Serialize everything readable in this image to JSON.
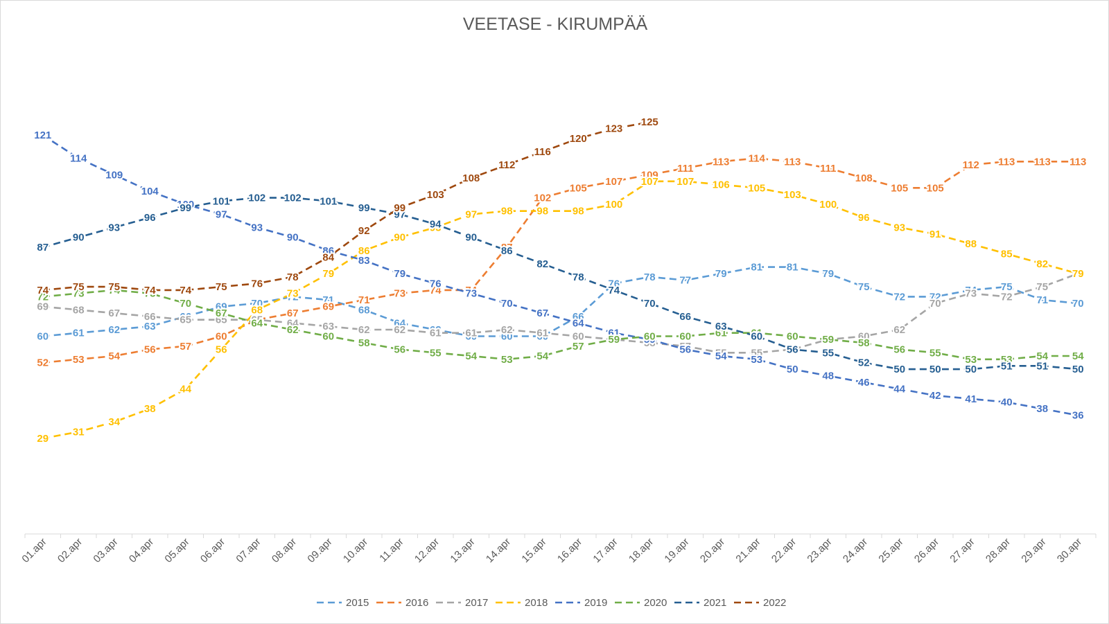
{
  "chart_data": {
    "type": "line",
    "title": "VEETASE - KIRUMPÄÄ",
    "xlabel": "",
    "ylabel": "",
    "ylim": [
      0,
      145
    ],
    "grid": false,
    "legend_position": "bottom",
    "categories": [
      "01.apr",
      "02.apr",
      "03.apr",
      "04.apr",
      "05.apr",
      "06.apr",
      "07.apr",
      "08.apr",
      "09.apr",
      "10.apr",
      "11.apr",
      "12.apr",
      "13.apr",
      "14.apr",
      "15.apr",
      "16.apr",
      "17.apr",
      "18.apr",
      "19.apr",
      "20.apr",
      "21.apr",
      "22.apr",
      "23.apr",
      "24.apr",
      "25.apr",
      "26.apr",
      "27.apr",
      "28.apr",
      "29.apr",
      "30.apr"
    ],
    "series": [
      {
        "name": "2015",
        "color": "#5b9bd5",
        "values": [
          60,
          61,
          62,
          63,
          66,
          69,
          70,
          72,
          71,
          68,
          64,
          62,
          60,
          60,
          60,
          66,
          76,
          78,
          77,
          79,
          81,
          81,
          79,
          75,
          72,
          72,
          74,
          75,
          71,
          70
        ]
      },
      {
        "name": "2016",
        "color": "#ed7d31",
        "values": [
          52,
          53,
          54,
          56,
          57,
          60,
          65,
          67,
          69,
          71,
          73,
          74,
          74,
          87,
          102,
          105,
          107,
          109,
          111,
          113,
          114,
          113,
          111,
          108,
          105,
          105,
          112,
          113,
          113,
          113
        ]
      },
      {
        "name": "2017",
        "color": "#a5a5a5",
        "values": [
          69,
          68,
          67,
          66,
          65,
          65,
          65,
          64,
          63,
          62,
          62,
          61,
          61,
          62,
          61,
          60,
          59,
          58,
          57,
          55,
          55,
          56,
          59,
          60,
          62,
          70,
          73,
          72,
          75,
          79
        ]
      },
      {
        "name": "2018",
        "color": "#ffc000",
        "values": [
          29,
          31,
          34,
          38,
          44,
          56,
          68,
          73,
          79,
          86,
          90,
          93,
          97,
          98,
          98,
          98,
          100,
          107,
          107,
          106,
          105,
          103,
          100,
          96,
          93,
          91,
          88,
          85,
          82,
          79
        ]
      },
      {
        "name": "2019",
        "color": "#4472c4",
        "values": [
          121,
          114,
          109,
          104,
          100,
          97,
          93,
          90,
          86,
          83,
          79,
          76,
          73,
          70,
          67,
          64,
          61,
          59,
          56,
          54,
          53,
          50,
          48,
          46,
          44,
          42,
          41,
          40,
          38,
          36
        ]
      },
      {
        "name": "2020",
        "color": "#70ad47",
        "values": [
          72,
          73,
          74,
          73,
          70,
          67,
          64,
          62,
          60,
          58,
          56,
          55,
          54,
          53,
          54,
          57,
          59,
          60,
          60,
          61,
          61,
          60,
          59,
          58,
          56,
          55,
          53,
          53,
          54,
          54
        ]
      },
      {
        "name": "2021",
        "color": "#255e91",
        "values": [
          87,
          90,
          93,
          96,
          99,
          101,
          102,
          102,
          101,
          99,
          97,
          94,
          90,
          86,
          82,
          78,
          74,
          70,
          66,
          63,
          60,
          56,
          55,
          52,
          50,
          50,
          50,
          51,
          51,
          50
        ]
      },
      {
        "name": "2022",
        "color": "#9e480e",
        "values": [
          74,
          75,
          75,
          74,
          74,
          75,
          76,
          78,
          84,
          92,
          99,
          103,
          108,
          112,
          116,
          120,
          123,
          125,
          null,
          null,
          null,
          null,
          null,
          null,
          null,
          null,
          null,
          null,
          null,
          null
        ]
      }
    ]
  }
}
